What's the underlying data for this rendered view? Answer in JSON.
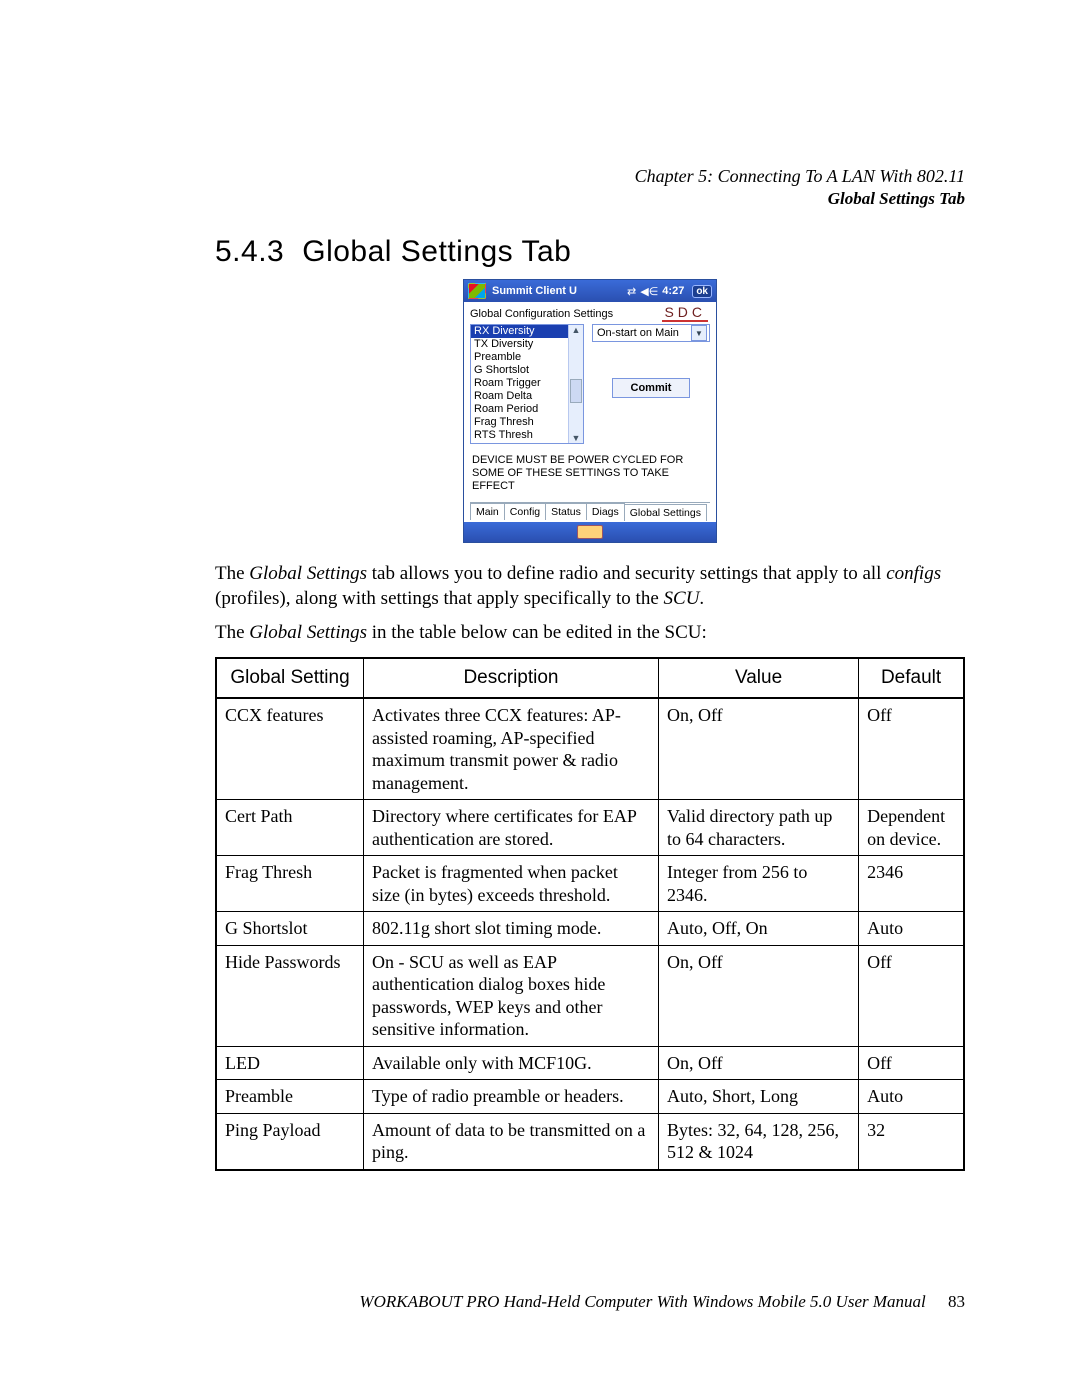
{
  "runningHead": {
    "line1": "Chapter 5: Connecting To A LAN With 802.11",
    "line2": "Global Settings Tab"
  },
  "heading": {
    "number": "5.4.3",
    "title": "Global Settings Tab"
  },
  "screenshot": {
    "titlebar": {
      "app": "Summit Client U",
      "time": "4:27",
      "ok": "ok"
    },
    "subtitle": "Global Configuration Settings",
    "logo": "SDC",
    "listItems": [
      "RX Diversity",
      "TX Diversity",
      "Preamble",
      "G Shortslot",
      "Roam Trigger",
      "Roam Delta",
      "Roam Period",
      "Frag Thresh",
      "RTS Thresh"
    ],
    "listSelectedIndex": 0,
    "dropdownValue": "On-start on Main",
    "commitLabel": "Commit",
    "notice": "DEVICE MUST BE POWER CYCLED FOR SOME OF THESE SETTINGS TO TAKE EFFECT",
    "tabs": [
      "Main",
      "Config",
      "Status",
      "Diags",
      "Global Settings"
    ],
    "activeTab": 4,
    "colors": {
      "titlebar_top": "#3a6bd8",
      "titlebar_bottom": "#2a4fb0",
      "border": "#7a96df",
      "selection": "#1a3fb0",
      "logo_color": "#6e1f1f"
    }
  },
  "para1_a": "The ",
  "para1_b": "Global Settings",
  "para1_c": " tab allows you to define radio and security settings that apply to all ",
  "para1_d": "configs",
  "para1_e": " (profiles), along with settings that apply specifically to the ",
  "para1_f": "SCU",
  "para1_g": ".",
  "para2_a": "The ",
  "para2_b": "Global Settings",
  "para2_c": " in the table below can be edited in the SCU:",
  "table": {
    "headers": [
      "Global Setting",
      "Description",
      "Value",
      "Default"
    ],
    "rows": [
      [
        "CCX features",
        "Activates three CCX features: AP-assisted roaming, AP-specified maximum transmit power & radio management.",
        "On, Off",
        "Off"
      ],
      [
        "Cert Path",
        "Directory where certificates for EAP authentication are stored.",
        "Valid directory path up to 64 characters.",
        "Dependent on device."
      ],
      [
        "Frag Thresh",
        "Packet is fragmented when packet size (in bytes) exceeds threshold.",
        "Integer from 256 to 2346.",
        "2346"
      ],
      [
        "G Shortslot",
        "802.11g short slot timing mode.",
        "Auto, Off, On",
        "Auto"
      ],
      [
        "Hide Passwords",
        "On - SCU as well as EAP authentication dialog boxes hide passwords, WEP keys and other sensitive information.",
        "On, Off",
        "Off"
      ],
      [
        "LED",
        "Available only with MCF10G.",
        "On, Off",
        "Off"
      ],
      [
        "Preamble",
        "Type of radio preamble or headers.",
        "Auto, Short, Long",
        "Auto"
      ],
      [
        "Ping Payload",
        "Amount of data to be transmitted on a ping.",
        "Bytes: 32, 64, 128, 256, 512 & 1024",
        "32"
      ]
    ]
  },
  "footer": {
    "text": "WORKABOUT PRO Hand-Held Computer With Windows Mobile 5.0 User Manual",
    "page": "83"
  }
}
